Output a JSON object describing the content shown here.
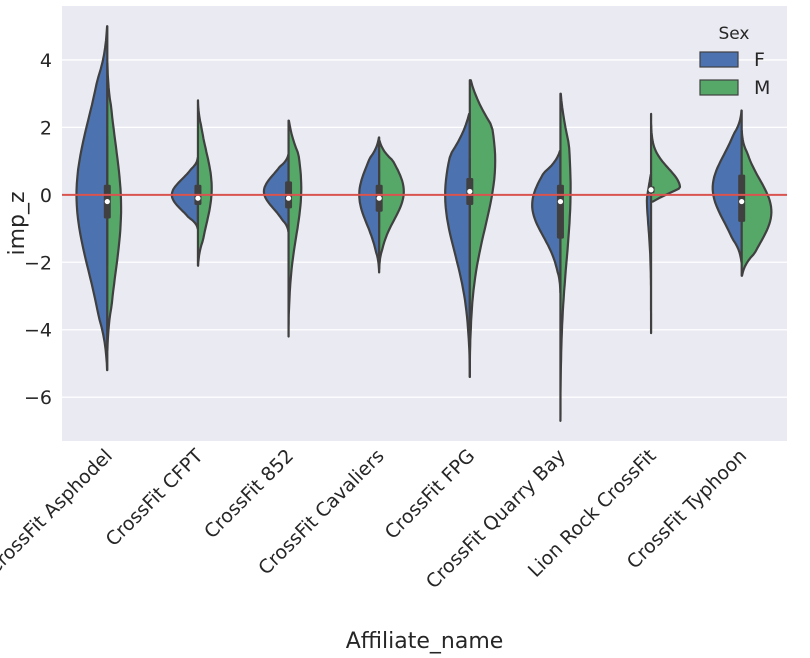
{
  "chart_data": {
    "type": "violin",
    "xlabel": "Affiliate_name",
    "ylabel": "imp_z",
    "ylim": [
      -7.3,
      5.6
    ],
    "yticks": [
      4,
      2,
      0,
      -2,
      -4,
      -6
    ],
    "grid": true,
    "reference_line": 0,
    "legend": {
      "title": "Sex",
      "position": "top-right"
    },
    "categories": [
      "Reebok CrossFit Asphodel",
      "CrossFit CFPT",
      "CrossFit 852",
      "CrossFit Cavaliers",
      "CrossFit FPG",
      "CrossFit Quarry Bay",
      "Lion Rock CrossFit",
      "CrossFit Typhoon"
    ],
    "series": [
      {
        "name": "F",
        "color": "#4c72b0"
      },
      {
        "name": "M",
        "color": "#55a868"
      }
    ],
    "violins": [
      {
        "F": {
          "min": -5.2,
          "max": 5.0,
          "peak": 0.0,
          "width": 0.85
        },
        "M": {
          "min": -4.6,
          "max": 3.9,
          "peak": -0.4,
          "width": 0.38
        },
        "box": {
          "q1": -0.7,
          "q3": 0.3,
          "median": -0.2
        }
      },
      {
        "F": {
          "min": -1.0,
          "max": 1.1,
          "peak": 0.0,
          "width": 0.72
        },
        "M": {
          "min": -2.1,
          "max": 2.8,
          "peak": 0.2,
          "width": 0.38
        },
        "box": {
          "q1": -0.3,
          "q3": 0.3,
          "median": -0.1
        }
      },
      {
        "F": {
          "min": -1.1,
          "max": 1.2,
          "peak": 0.1,
          "width": 0.68
        },
        "M": {
          "min": -4.2,
          "max": 2.2,
          "peak": 0.2,
          "width": 0.35
        },
        "box": {
          "q1": -0.4,
          "q3": 0.4,
          "median": -0.1
        }
      },
      {
        "F": {
          "min": -2.3,
          "max": 1.7,
          "peak": 0.0,
          "width": 0.55
        },
        "M": {
          "min": -2.2,
          "max": 1.6,
          "peak": 0.1,
          "width": 0.68
        },
        "box": {
          "q1": -0.5,
          "q3": 0.3,
          "median": -0.1
        }
      },
      {
        "F": {
          "min": -5.4,
          "max": 2.4,
          "peak": 0.0,
          "width": 0.68
        },
        "M": {
          "min": -5.4,
          "max": 3.4,
          "peak": 1.0,
          "width": 0.7
        },
        "box": {
          "q1": -0.3,
          "q3": 0.5,
          "median": 0.1
        }
      },
      {
        "F": {
          "min": -2.9,
          "max": 1.3,
          "peak": -0.3,
          "width": 0.78
        },
        "M": {
          "min": -6.7,
          "max": 3.0,
          "peak": 0.2,
          "width": 0.28
        },
        "box": {
          "q1": -1.3,
          "q3": 0.3,
          "median": -0.2
        }
      },
      {
        "F": {
          "min": -4.1,
          "max": 0.6,
          "peak": 0.1,
          "width": 0.12
        },
        "M": {
          "min": -0.2,
          "max": 2.4,
          "peak": 0.2,
          "width": 0.8
        },
        "box": {
          "q1": 0.05,
          "q3": 0.25,
          "median": 0.15
        }
      },
      {
        "F": {
          "min": -2.0,
          "max": 2.5,
          "peak": 0.2,
          "width": 0.8
        },
        "M": {
          "min": -2.4,
          "max": 1.9,
          "peak": -0.5,
          "width": 0.82
        },
        "box": {
          "q1": -0.8,
          "q3": 0.6,
          "median": -0.2
        }
      }
    ]
  }
}
